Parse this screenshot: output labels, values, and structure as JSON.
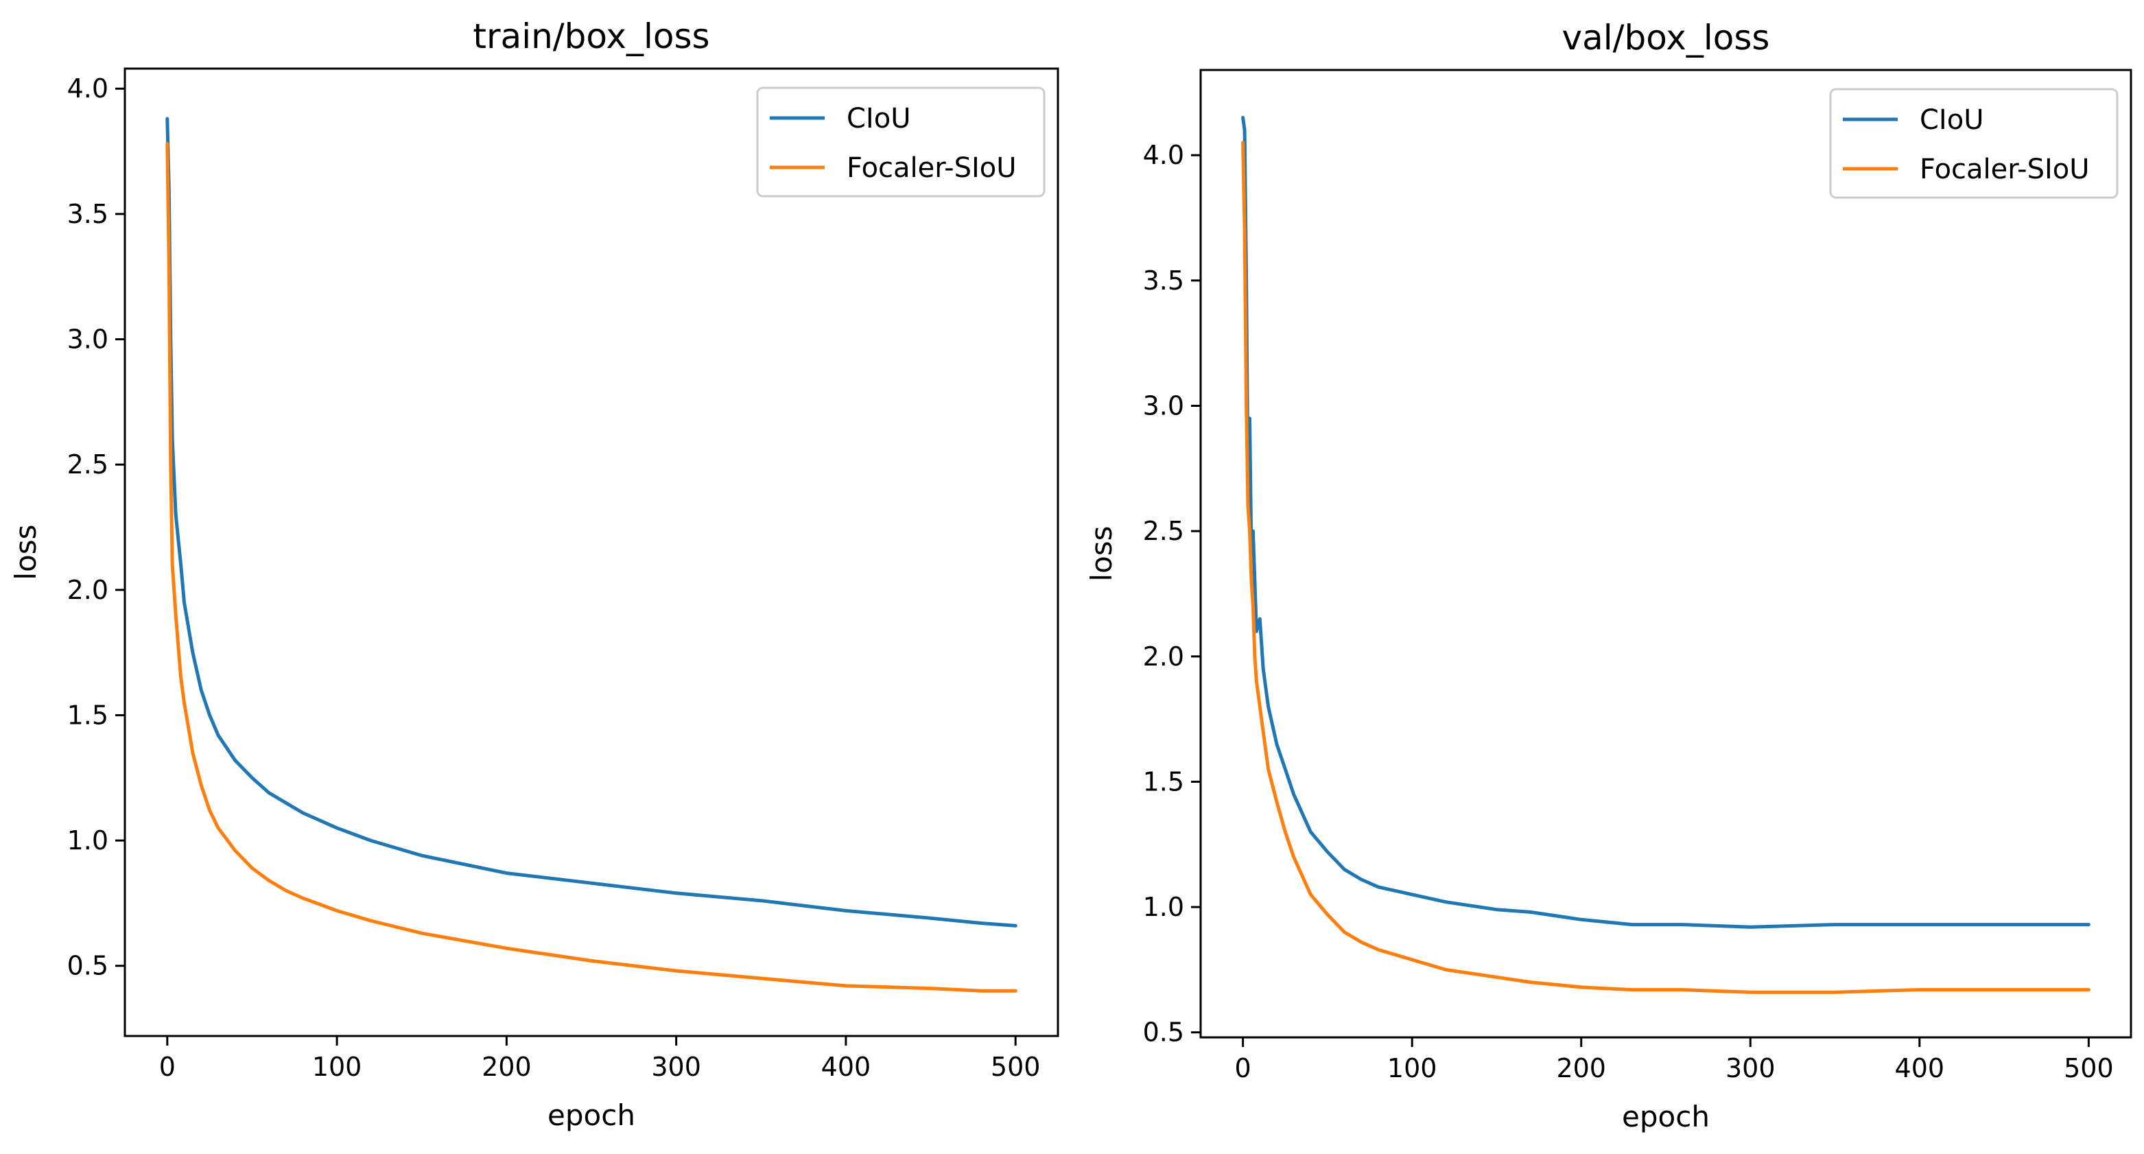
{
  "chart_data": [
    {
      "type": "line",
      "title": "train/box_loss",
      "xlabel": "epoch",
      "ylabel": "loss",
      "xlim": [
        -25,
        525
      ],
      "ylim": [
        0.22,
        4.08
      ],
      "xticks": [
        0,
        100,
        200,
        300,
        400,
        500
      ],
      "xtick_labels": [
        "0",
        "100",
        "200",
        "300",
        "400",
        "500"
      ],
      "yticks": [
        0.5,
        1.0,
        1.5,
        2.0,
        2.5,
        3.0,
        3.5,
        4.0
      ],
      "ytick_labels": [
        "0.5",
        "1.0",
        "1.5",
        "2.0",
        "2.5",
        "3.0",
        "3.5",
        "4.0"
      ],
      "grid": false,
      "legend_position": "top-right",
      "series": [
        {
          "name": "CIoU",
          "color": "#1f77b4",
          "x": [
            0,
            1,
            2,
            3,
            5,
            8,
            10,
            15,
            20,
            25,
            30,
            40,
            50,
            60,
            70,
            80,
            100,
            120,
            150,
            200,
            250,
            300,
            350,
            400,
            450,
            480,
            500
          ],
          "values": [
            3.88,
            3.6,
            3.0,
            2.6,
            2.3,
            2.1,
            1.95,
            1.75,
            1.6,
            1.5,
            1.42,
            1.32,
            1.25,
            1.19,
            1.15,
            1.11,
            1.05,
            1.0,
            0.94,
            0.87,
            0.83,
            0.79,
            0.76,
            0.72,
            0.69,
            0.67,
            0.66
          ]
        },
        {
          "name": "Focaler-SIoU",
          "color": "#ff7f0e",
          "x": [
            0,
            1,
            2,
            3,
            5,
            8,
            10,
            15,
            20,
            25,
            30,
            40,
            50,
            60,
            70,
            80,
            100,
            120,
            150,
            200,
            250,
            300,
            350,
            400,
            450,
            480,
            500
          ],
          "values": [
            3.78,
            3.3,
            2.5,
            2.1,
            1.9,
            1.65,
            1.55,
            1.35,
            1.22,
            1.12,
            1.05,
            0.96,
            0.89,
            0.84,
            0.8,
            0.77,
            0.72,
            0.68,
            0.63,
            0.57,
            0.52,
            0.48,
            0.45,
            0.42,
            0.41,
            0.4,
            0.4
          ]
        }
      ]
    },
    {
      "type": "line",
      "title": "val/box_loss",
      "xlabel": "epoch",
      "ylabel": "loss",
      "xlim": [
        -25,
        525
      ],
      "ylim": [
        0.48,
        4.34
      ],
      "xticks": [
        0,
        100,
        200,
        300,
        400,
        500
      ],
      "xtick_labels": [
        "0",
        "100",
        "200",
        "300",
        "400",
        "500"
      ],
      "yticks": [
        0.5,
        1.0,
        1.5,
        2.0,
        2.5,
        3.0,
        3.5,
        4.0
      ],
      "ytick_labels": [
        "0.5",
        "1.0",
        "1.5",
        "2.0",
        "2.5",
        "3.0",
        "3.5",
        "4.0"
      ],
      "grid": false,
      "legend_position": "top-right",
      "series": [
        {
          "name": "CIoU",
          "color": "#1f77b4",
          "x": [
            0,
            1,
            2,
            3,
            4,
            5,
            6,
            7,
            8,
            10,
            12,
            15,
            20,
            25,
            30,
            40,
            50,
            60,
            70,
            80,
            100,
            120,
            150,
            170,
            200,
            230,
            260,
            300,
            350,
            400,
            450,
            500
          ],
          "values": [
            4.15,
            4.1,
            3.5,
            2.7,
            2.95,
            2.4,
            2.5,
            2.3,
            2.1,
            2.15,
            1.95,
            1.8,
            1.65,
            1.55,
            1.45,
            1.3,
            1.22,
            1.15,
            1.11,
            1.08,
            1.05,
            1.02,
            0.99,
            0.98,
            0.95,
            0.93,
            0.93,
            0.92,
            0.93,
            0.93,
            0.93,
            0.93
          ]
        },
        {
          "name": "Focaler-SIoU",
          "color": "#ff7f0e",
          "x": [
            0,
            1,
            2,
            3,
            4,
            5,
            6,
            7,
            8,
            10,
            12,
            15,
            20,
            25,
            30,
            40,
            50,
            60,
            70,
            80,
            100,
            120,
            150,
            170,
            200,
            230,
            260,
            300,
            350,
            400,
            450,
            500
          ],
          "values": [
            4.05,
            3.7,
            3.0,
            2.6,
            2.5,
            2.3,
            2.2,
            2.0,
            1.9,
            1.8,
            1.7,
            1.55,
            1.42,
            1.3,
            1.2,
            1.05,
            0.97,
            0.9,
            0.86,
            0.83,
            0.79,
            0.75,
            0.72,
            0.7,
            0.68,
            0.67,
            0.67,
            0.66,
            0.66,
            0.67,
            0.67,
            0.67
          ]
        }
      ]
    }
  ]
}
